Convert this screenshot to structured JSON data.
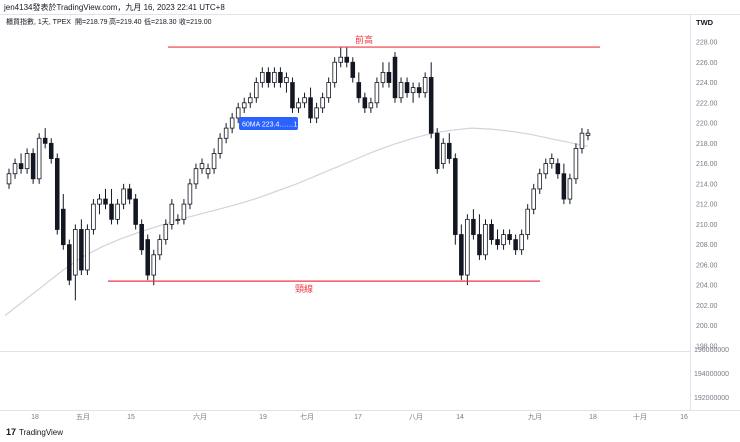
{
  "header": {
    "published_by": "jen4134發表於TradingView.com，九月 16, 2023 22:41 UTC+8",
    "symbol_line": "櫃買指數, 1天, TPEX",
    "ohlc": [
      "開=218.79",
      "高=219.40",
      "低=218.30",
      "收=219.00"
    ]
  },
  "currency": "TWD",
  "ma_badge": "60MA 223.4……1",
  "footer_logo": "TradingView",
  "colors": {
    "candle_up_fill": "#ffffff",
    "candle_down_fill": "#131722",
    "wick": "#131722",
    "ma_line": "#d1d4dc",
    "annotation": "#f23645",
    "badge": "#2962ff",
    "last_price": "#131722"
  },
  "chart_data": [
    {
      "type": "candlestick",
      "title": "櫃買指數, 1天, TPEX",
      "ylim": [
        198,
        229
      ],
      "y_ticks": [
        "228.00",
        "226.00",
        "224.00",
        "222.00",
        "220.00",
        "219.00",
        "218.00",
        "216.00",
        "214.00",
        "212.00",
        "210.00",
        "208.00",
        "206.00",
        "204.00",
        "202.00",
        "200.00",
        "198.00"
      ],
      "x_ticks": [
        "18",
        "五月",
        "15",
        "六月",
        "19",
        "七月",
        "17",
        "八月",
        "14",
        "九月",
        "18",
        "十月",
        "16"
      ],
      "last_price": 219.0,
      "candles": [
        [
          214.0,
          215.5,
          213.5,
          215.0
        ],
        [
          215.0,
          216.5,
          214.5,
          216.0
        ],
        [
          216.0,
          217.0,
          215.0,
          215.5
        ],
        [
          215.5,
          217.5,
          215.0,
          217.0
        ],
        [
          217.0,
          217.5,
          214.0,
          214.5
        ],
        [
          214.5,
          219.0,
          214.0,
          218.5
        ],
        [
          218.5,
          219.5,
          217.5,
          218.0
        ],
        [
          218.0,
          218.5,
          216.0,
          216.5
        ],
        [
          216.5,
          217.0,
          209.0,
          209.5
        ],
        [
          211.5,
          213.0,
          207.5,
          208.0
        ],
        [
          208.0,
          208.5,
          204.0,
          204.5
        ],
        [
          205.0,
          210.0,
          202.5,
          209.5
        ],
        [
          209.5,
          210.5,
          205.0,
          205.5
        ],
        [
          205.5,
          210.0,
          205.0,
          209.5
        ],
        [
          209.5,
          212.5,
          209.0,
          212.0
        ],
        [
          212.0,
          213.0,
          211.0,
          212.5
        ],
        [
          212.5,
          213.5,
          211.5,
          212.0
        ],
        [
          212.0,
          213.5,
          210.0,
          210.5
        ],
        [
          210.5,
          212.5,
          210.0,
          212.0
        ],
        [
          212.0,
          214.0,
          211.5,
          213.5
        ],
        [
          213.5,
          214.0,
          212.0,
          212.5
        ],
        [
          212.5,
          213.0,
          209.5,
          210.0
        ],
        [
          210.0,
          210.5,
          207.0,
          207.5
        ],
        [
          208.5,
          209.0,
          204.5,
          205.0
        ],
        [
          205.0,
          207.5,
          204.0,
          207.0
        ],
        [
          207.0,
          209.0,
          206.5,
          208.5
        ],
        [
          208.5,
          210.5,
          208.0,
          210.0
        ],
        [
          210.0,
          212.5,
          209.5,
          212.0
        ],
        [
          210.5,
          211.0,
          210.0,
          210.5
        ],
        [
          210.5,
          212.5,
          210.0,
          212.0
        ],
        [
          212.0,
          214.5,
          211.5,
          214.0
        ],
        [
          214.0,
          216.0,
          213.5,
          215.5
        ],
        [
          215.5,
          216.5,
          215.0,
          216.0
        ],
        [
          215.0,
          216.0,
          214.5,
          215.5
        ],
        [
          215.5,
          217.5,
          215.0,
          217.0
        ],
        [
          217.0,
          219.0,
          216.5,
          218.5
        ],
        [
          218.5,
          220.0,
          218.0,
          219.5
        ],
        [
          219.5,
          221.0,
          219.0,
          220.5
        ],
        [
          220.5,
          222.0,
          220.0,
          221.5
        ],
        [
          221.5,
          222.5,
          221.0,
          222.0
        ],
        [
          222.0,
          223.0,
          221.5,
          222.5
        ],
        [
          222.5,
          224.5,
          222.0,
          224.0
        ],
        [
          224.0,
          225.5,
          223.5,
          225.0
        ],
        [
          225.0,
          225.5,
          223.5,
          224.0
        ],
        [
          224.0,
          225.5,
          223.5,
          225.0
        ],
        [
          225.0,
          225.5,
          223.5,
          224.0
        ],
        [
          224.0,
          225.0,
          223.0,
          224.5
        ],
        [
          224.0,
          224.5,
          221.0,
          221.5
        ],
        [
          221.5,
          222.5,
          221.0,
          222.0
        ],
        [
          222.0,
          223.0,
          221.5,
          222.5
        ],
        [
          222.5,
          223.5,
          220.0,
          220.5
        ],
        [
          220.5,
          222.0,
          220.0,
          221.5
        ],
        [
          221.5,
          223.0,
          221.0,
          222.5
        ],
        [
          222.5,
          224.5,
          222.0,
          224.0
        ],
        [
          224.0,
          226.5,
          223.5,
          226.0
        ],
        [
          226.0,
          227.5,
          225.5,
          226.5
        ],
        [
          226.5,
          227.5,
          225.5,
          226.0
        ],
        [
          226.0,
          226.5,
          224.0,
          224.5
        ],
        [
          224.0,
          225.0,
          222.0,
          222.5
        ],
        [
          222.5,
          223.0,
          221.0,
          221.5
        ],
        [
          221.5,
          222.5,
          221.0,
          222.0
        ],
        [
          222.0,
          224.5,
          221.5,
          224.0
        ],
        [
          224.0,
          226.0,
          223.5,
          225.0
        ],
        [
          225.0,
          226.0,
          223.5,
          224.0
        ],
        [
          226.5,
          227.0,
          222.0,
          222.5
        ],
        [
          222.5,
          224.5,
          222.0,
          224.0
        ],
        [
          224.0,
          224.5,
          222.5,
          223.0
        ],
        [
          223.0,
          224.0,
          222.0,
          223.5
        ],
        [
          223.5,
          224.0,
          222.5,
          223.0
        ],
        [
          223.0,
          225.0,
          222.5,
          224.5
        ],
        [
          224.5,
          226.0,
          218.5,
          219.0
        ],
        [
          219.0,
          219.5,
          215.0,
          215.5
        ],
        [
          216.0,
          218.5,
          215.5,
          218.0
        ],
        [
          218.0,
          219.0,
          216.0,
          216.5
        ],
        [
          216.5,
          217.0,
          208.0,
          209.0
        ],
        [
          209.0,
          210.0,
          204.5,
          205.0
        ],
        [
          205.0,
          211.0,
          204.0,
          210.5
        ],
        [
          210.5,
          211.5,
          208.5,
          209.0
        ],
        [
          209.0,
          211.0,
          206.5,
          207.0
        ],
        [
          207.0,
          210.5,
          206.5,
          210.0
        ],
        [
          210.0,
          210.5,
          208.0,
          208.5
        ],
        [
          208.5,
          209.5,
          207.5,
          208.0
        ],
        [
          208.0,
          209.5,
          207.5,
          209.0
        ],
        [
          209.0,
          209.5,
          208.0,
          208.5
        ],
        [
          208.5,
          209.0,
          207.0,
          207.5
        ],
        [
          207.5,
          209.5,
          207.0,
          209.0
        ],
        [
          209.0,
          212.0,
          208.5,
          211.5
        ],
        [
          211.5,
          214.0,
          211.0,
          213.5
        ],
        [
          213.5,
          215.5,
          213.0,
          215.0
        ],
        [
          215.0,
          216.5,
          214.5,
          216.0
        ],
        [
          216.0,
          217.0,
          215.5,
          216.5
        ],
        [
          216.0,
          216.5,
          214.5,
          215.0
        ],
        [
          215.0,
          216.0,
          212.0,
          212.5
        ],
        [
          212.5,
          215.0,
          212.0,
          214.5
        ],
        [
          214.5,
          218.0,
          214.0,
          217.5
        ],
        [
          217.5,
          219.5,
          217.0,
          219.0
        ],
        [
          218.79,
          219.4,
          218.3,
          219.0
        ]
      ],
      "ma_series": {
        "name": "60MA",
        "values": [
          201.0,
          202.5,
          204.0,
          205.5,
          206.8,
          207.8,
          208.6,
          209.3,
          209.9,
          210.5,
          211.0,
          211.5,
          212.0,
          212.6,
          213.3,
          214.0,
          214.8,
          215.6,
          216.4,
          217.2,
          217.9,
          218.5,
          219.0,
          219.3,
          219.5,
          219.4,
          219.2,
          218.9,
          218.5,
          218.1,
          217.7
        ]
      },
      "annotations": [
        {
          "label": "前高",
          "y": 227.5
        },
        {
          "label": "頸線",
          "y": 204.4
        }
      ],
      "volume_ticks": [
        "196000000",
        "194000000",
        "192000000"
      ]
    }
  ]
}
